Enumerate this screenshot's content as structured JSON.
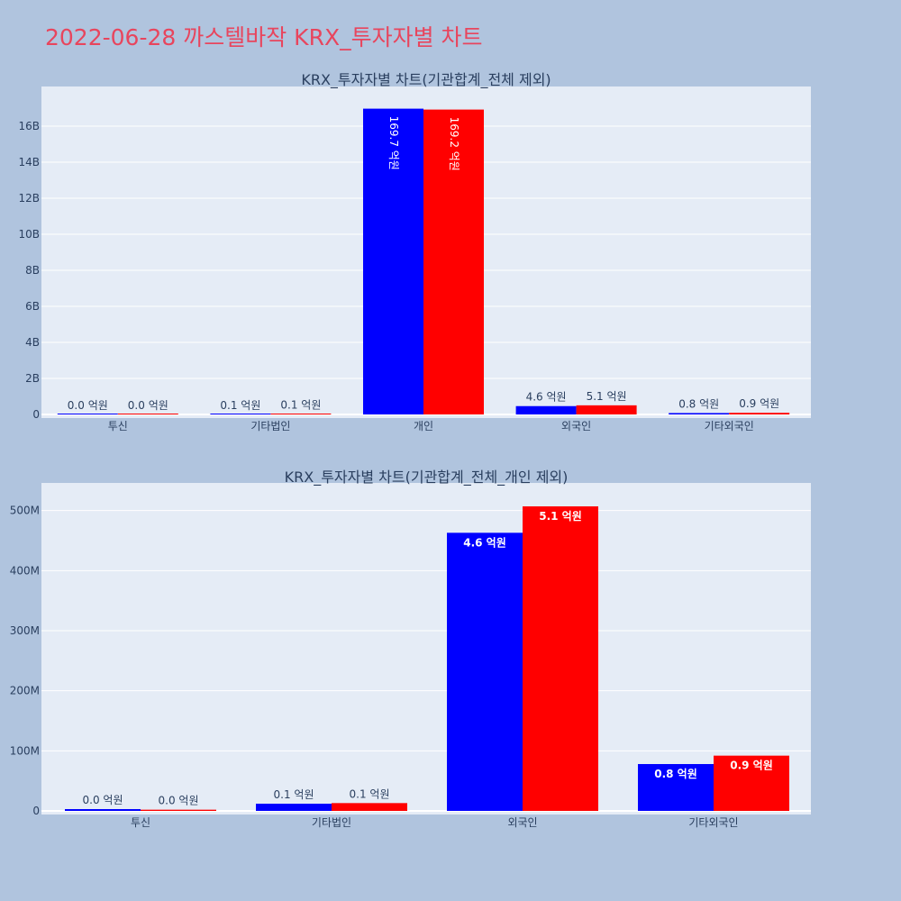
{
  "page": {
    "title": "2022-06-28 까스텔바작 KRX_투자자별 차트",
    "title_color": "#e8455d",
    "background": "#b0c4de",
    "plot_background": "#e5ecf6"
  },
  "chart_data": [
    {
      "type": "bar",
      "title": "KRX_투자자별 차트(기관합계_전체 제외)",
      "categories": [
        "투신",
        "기타법인",
        "개인",
        "외국인",
        "기타외국인"
      ],
      "series": [
        {
          "color": "#0000ff",
          "values": [
            3000000,
            12000000,
            16970000000,
            463000000,
            78000000
          ],
          "labels": [
            "0.0 억원",
            "0.1 억원",
            "169.7 억원",
            "4.6 억원",
            "0.8 억원"
          ]
        },
        {
          "color": "#ff0000",
          "values": [
            2000000,
            13000000,
            16920000000,
            507000000,
            92000000
          ],
          "labels": [
            "0.0 억원",
            "0.1 억원",
            "169.2 억원",
            "5.1 억원",
            "0.9 억원"
          ]
        }
      ],
      "ylim": [
        0,
        18000000000
      ],
      "yticks": [
        0,
        2000000000,
        4000000000,
        6000000000,
        8000000000,
        10000000000,
        12000000000,
        14000000000,
        16000000000
      ],
      "ytick_labels": [
        "0",
        "2B",
        "4B",
        "6B",
        "8B",
        "10B",
        "12B",
        "14B",
        "16B"
      ],
      "grid": true,
      "xlabel": "",
      "ylabel": ""
    },
    {
      "type": "bar",
      "title": "KRX_투자자별 차트(기관합계_전체_개인 제외)",
      "categories": [
        "투신",
        "기타법인",
        "외국인",
        "기타외국인"
      ],
      "series": [
        {
          "color": "#0000ff",
          "values": [
            3000000,
            12000000,
            463000000,
            78000000
          ],
          "labels": [
            "0.0 억원",
            "0.1 억원",
            "4.6 억원",
            "0.8 억원"
          ]
        },
        {
          "color": "#ff0000",
          "values": [
            2000000,
            13000000,
            507000000,
            92000000
          ],
          "labels": [
            "0.0 억원",
            "0.1 억원",
            "5.1 억원",
            "0.9 억원"
          ]
        }
      ],
      "ylim": [
        0,
        540000000
      ],
      "yticks": [
        0,
        100000000,
        200000000,
        300000000,
        400000000,
        500000000
      ],
      "ytick_labels": [
        "0",
        "100M",
        "200M",
        "300M",
        "400M",
        "500M"
      ],
      "grid": true,
      "xlabel": "",
      "ylabel": ""
    }
  ]
}
